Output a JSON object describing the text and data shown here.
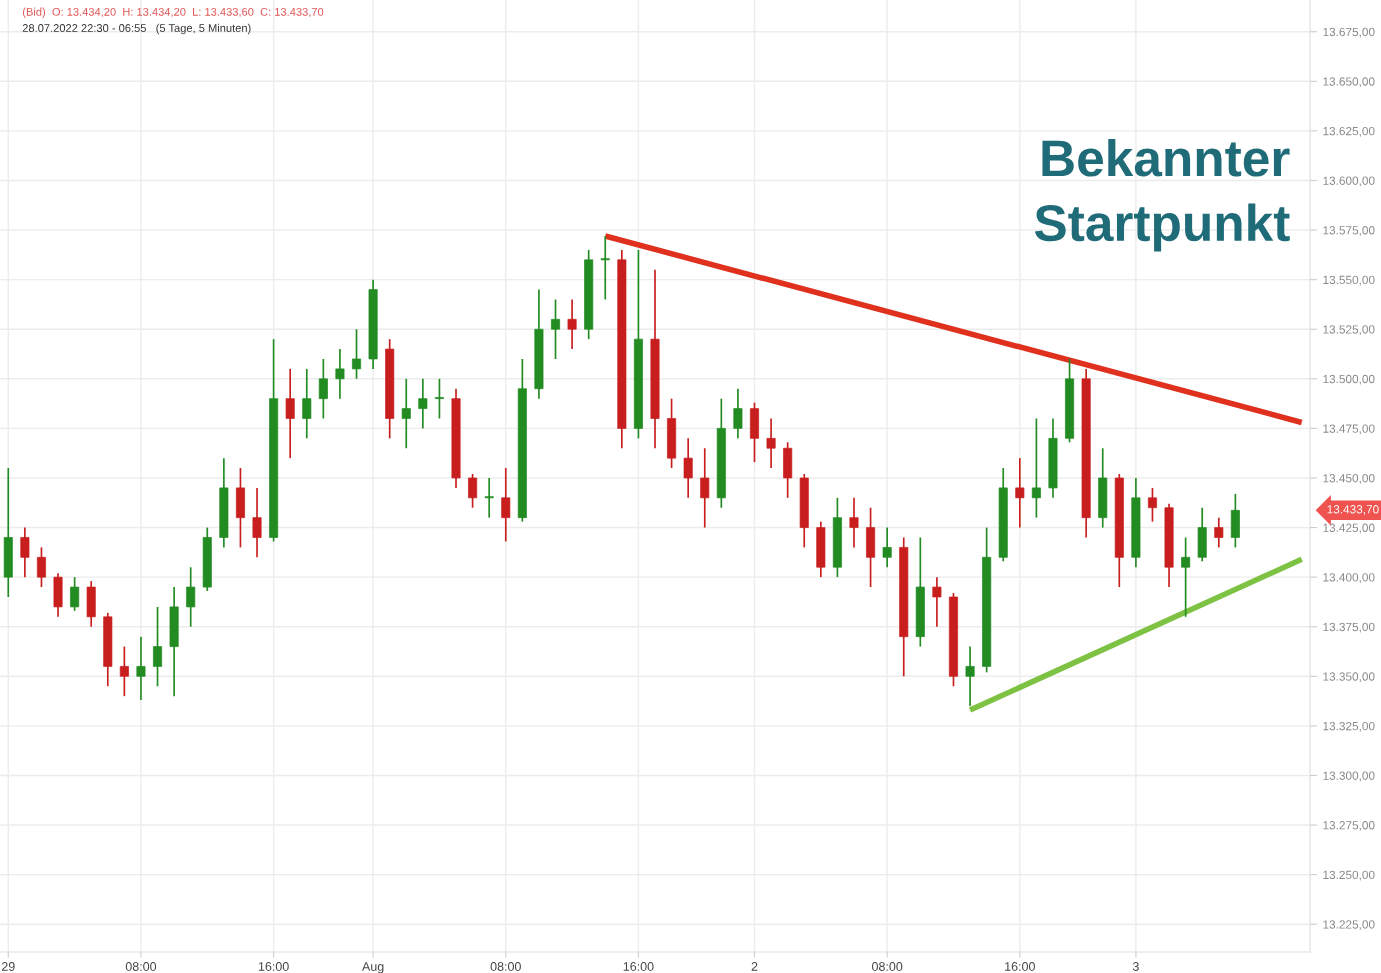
{
  "chart_data": {
    "type": "candlestick",
    "title": "(Bid)  O: 13.434,20  H: 13.434,20  L: 13.433,60  C: 13.433,70",
    "subtitle": "28.07.2022 22:30 - 06:55   (5 Tage, 5 Minuten)",
    "annotations": [
      "Bekannter\nStartpunkt",
      "13.433,70"
    ],
    "categories": [
      "29",
      null,
      null,
      null,
      null,
      null,
      null,
      null,
      "08:00",
      null,
      null,
      null,
      null,
      null,
      null,
      null,
      "16:00",
      null,
      null,
      null,
      null,
      null,
      "Aug",
      null,
      null,
      null,
      null,
      null,
      null,
      null,
      "08:00",
      null,
      null,
      null,
      null,
      null,
      null,
      null,
      "16:00",
      null,
      null,
      null,
      null,
      null,
      null,
      "2",
      null,
      null,
      null,
      null,
      null,
      null,
      null,
      "08:00",
      null,
      null,
      null,
      null,
      null,
      null,
      null,
      "16:00",
      null,
      null,
      null,
      null,
      null,
      null,
      "3",
      null,
      null,
      null,
      null,
      null,
      null,
      null,
      null,
      null,
      null
    ],
    "ohlc": [
      [
        13400,
        13455,
        13390,
        13420
      ],
      [
        13420,
        13425,
        13400,
        13410
      ],
      [
        13410,
        13415,
        13395,
        13400
      ],
      [
        13400,
        13402,
        13380,
        13385
      ],
      [
        13385,
        13400,
        13383,
        13395
      ],
      [
        13395,
        13398,
        13375,
        13380
      ],
      [
        13380,
        13382,
        13345,
        13355
      ],
      [
        13355,
        13365,
        13340,
        13350
      ],
      [
        13350,
        13370,
        13338,
        13355
      ],
      [
        13355,
        13385,
        13345,
        13365
      ],
      [
        13365,
        13395,
        13340,
        13385
      ],
      [
        13385,
        13405,
        13375,
        13395
      ],
      [
        13395,
        13425,
        13393,
        13420
      ],
      [
        13420,
        13460,
        13415,
        13445
      ],
      [
        13445,
        13455,
        13415,
        13430
      ],
      [
        13430,
        13445,
        13410,
        13420
      ],
      [
        13420,
        13520,
        13418,
        13490
      ],
      [
        13490,
        13505,
        13460,
        13480
      ],
      [
        13480,
        13505,
        13470,
        13490
      ],
      [
        13490,
        13510,
        13480,
        13500
      ],
      [
        13500,
        13515,
        13490,
        13505
      ],
      [
        13505,
        13525,
        13500,
        13510
      ],
      [
        13510,
        13550,
        13505,
        13545
      ],
      [
        13515,
        13520,
        13470,
        13480
      ],
      [
        13480,
        13500,
        13465,
        13485
      ],
      [
        13485,
        13500,
        13475,
        13490
      ],
      [
        13490,
        13500,
        13480,
        13490
      ],
      [
        13490,
        13495,
        13445,
        13450
      ],
      [
        13450,
        13452,
        13435,
        13440
      ],
      [
        13440,
        13450,
        13430,
        13440
      ],
      [
        13440,
        13455,
        13418,
        13430
      ],
      [
        13430,
        13510,
        13428,
        13495
      ],
      [
        13495,
        13545,
        13490,
        13525
      ],
      [
        13525,
        13540,
        13510,
        13530
      ],
      [
        13530,
        13540,
        13515,
        13525
      ],
      [
        13525,
        13565,
        13520,
        13560
      ],
      [
        13560,
        13572,
        13540,
        13560
      ],
      [
        13560,
        13565,
        13465,
        13475
      ],
      [
        13475,
        13565,
        13470,
        13520
      ],
      [
        13520,
        13555,
        13465,
        13480
      ],
      [
        13480,
        13490,
        13455,
        13460
      ],
      [
        13460,
        13470,
        13440,
        13450
      ],
      [
        13450,
        13465,
        13425,
        13440
      ],
      [
        13440,
        13490,
        13435,
        13475
      ],
      [
        13475,
        13495,
        13470,
        13485
      ],
      [
        13485,
        13488,
        13458,
        13470
      ],
      [
        13470,
        13480,
        13455,
        13465
      ],
      [
        13465,
        13468,
        13440,
        13450
      ],
      [
        13450,
        13452,
        13415,
        13425
      ],
      [
        13425,
        13428,
        13400,
        13405
      ],
      [
        13405,
        13440,
        13400,
        13430
      ],
      [
        13430,
        13440,
        13415,
        13425
      ],
      [
        13425,
        13435,
        13395,
        13410
      ],
      [
        13410,
        13425,
        13405,
        13415
      ],
      [
        13415,
        13420,
        13350,
        13370
      ],
      [
        13370,
        13420,
        13365,
        13395
      ],
      [
        13395,
        13400,
        13375,
        13390
      ],
      [
        13390,
        13392,
        13345,
        13350
      ],
      [
        13350,
        13365,
        13335,
        13355
      ],
      [
        13355,
        13425,
        13352,
        13410
      ],
      [
        13410,
        13455,
        13408,
        13445
      ],
      [
        13445,
        13460,
        13425,
        13440
      ],
      [
        13440,
        13480,
        13430,
        13445
      ],
      [
        13445,
        13480,
        13440,
        13470
      ],
      [
        13470,
        13510,
        13468,
        13500
      ],
      [
        13500,
        13505,
        13420,
        13430
      ],
      [
        13430,
        13465,
        13425,
        13450
      ],
      [
        13450,
        13452,
        13395,
        13410
      ],
      [
        13410,
        13450,
        13405,
        13440
      ],
      [
        13440,
        13445,
        13428,
        13435
      ],
      [
        13435,
        13437,
        13395,
        13405
      ],
      [
        13405,
        13420,
        13380,
        13410
      ],
      [
        13410,
        13435,
        13408,
        13425
      ],
      [
        13425,
        13430,
        13415,
        13420
      ],
      [
        13420,
        13442,
        13415,
        13433.7
      ],
      null,
      null,
      null,
      null
    ],
    "colors": [
      "#228b22",
      "#c81e1e",
      "#c81e1e",
      "#c81e1e",
      "#228b22",
      "#c81e1e",
      "#c81e1e",
      "#c81e1e",
      "#228b22",
      "#228b22",
      "#228b22",
      "#228b22",
      "#228b22",
      "#228b22",
      "#c81e1e",
      "#c81e1e",
      "#228b22",
      "#c81e1e",
      "#228b22",
      "#228b22",
      "#228b22",
      "#228b22",
      "#228b22",
      "#c81e1e",
      "#228b22",
      "#228b22",
      "#228b22",
      "#c81e1e",
      "#c81e1e",
      "#228b22",
      "#c81e1e",
      "#228b22",
      "#228b22",
      "#228b22",
      "#c81e1e",
      "#228b22",
      "#228b22",
      "#c81e1e",
      "#228b22",
      "#c81e1e",
      "#c81e1e",
      "#c81e1e",
      "#c81e1e",
      "#228b22",
      "#228b22",
      "#c81e1e",
      "#c81e1e",
      "#c81e1e",
      "#c81e1e",
      "#c81e1e",
      "#228b22",
      "#c81e1e",
      "#c81e1e",
      "#228b22",
      "#c81e1e",
      "#228b22",
      "#c81e1e",
      "#c81e1e",
      "#228b22",
      "#228b22",
      "#228b22",
      "#c81e1e",
      "#228b22",
      "#228b22",
      "#228b22",
      "#c81e1e",
      "#228b22",
      "#c81e1e",
      "#228b22",
      "#c81e1e",
      "#c81e1e",
      "#228b22",
      "#228b22",
      "#c81e1e",
      "#228b22",
      null,
      null,
      null,
      null
    ],
    "series": [
      {
        "type": "line",
        "values": [
          null,
          null,
          null,
          null,
          null,
          null,
          null,
          null,
          null,
          null,
          null,
          null,
          null,
          null,
          null,
          null,
          null,
          null,
          null,
          null,
          null,
          null,
          null,
          null,
          null,
          null,
          null,
          null,
          null,
          null,
          null,
          null,
          null,
          null,
          null,
          null,
          13572,
          null,
          null,
          null,
          null,
          null,
          null,
          null,
          null,
          null,
          null,
          null,
          null,
          null,
          null,
          null,
          null,
          null,
          null,
          null,
          null,
          null,
          null,
          null,
          null,
          null,
          null,
          null,
          null,
          null,
          null,
          null,
          null,
          null,
          null,
          null,
          null,
          null,
          null,
          null,
          null,
          null,
          13478
        ],
        "color": "#e0301e"
      },
      {
        "type": "line",
        "values": [
          null,
          null,
          null,
          null,
          null,
          null,
          null,
          null,
          null,
          null,
          null,
          null,
          null,
          null,
          null,
          null,
          null,
          null,
          null,
          null,
          null,
          null,
          null,
          null,
          null,
          null,
          null,
          null,
          null,
          null,
          null,
          null,
          null,
          null,
          null,
          null,
          null,
          null,
          null,
          null,
          null,
          null,
          null,
          null,
          null,
          null,
          null,
          null,
          null,
          null,
          null,
          null,
          null,
          null,
          null,
          null,
          null,
          null,
          13333,
          null,
          null,
          null,
          null,
          null,
          null,
          null,
          null,
          null,
          null,
          null,
          null,
          null,
          null,
          null,
          null,
          null,
          null,
          null,
          13409
        ],
        "color": "#7dc242"
      }
    ],
    "ylim": [
      13211,
      13691
    ],
    "yticks": [
      {
        "value": 13225,
        "label": "13.225,00"
      },
      {
        "value": 13250,
        "label": "13.250,00"
      },
      {
        "value": 13275,
        "label": "13.275,00"
      },
      {
        "value": 13300,
        "label": "13.300,00"
      },
      {
        "value": 13325,
        "label": "13.325,00"
      },
      {
        "value": 13350,
        "label": "13.350,00"
      },
      {
        "value": 13375,
        "label": "13.375,00"
      },
      {
        "value": 13400,
        "label": "13.400,00"
      },
      {
        "value": 13425,
        "label": "13.425,00"
      },
      {
        "value": 13450,
        "label": "13.450,00"
      },
      {
        "value": 13475,
        "label": "13.475,00"
      },
      {
        "value": 13500,
        "label": "13.500,00"
      },
      {
        "value": 13525,
        "label": "13.525,00"
      },
      {
        "value": 13550,
        "label": "13.550,00"
      },
      {
        "value": 13575,
        "label": "13.575,00"
      },
      {
        "value": 13600,
        "label": "13.600,00"
      },
      {
        "value": 13625,
        "label": "13.625,00"
      },
      {
        "value": 13650,
        "label": "13.650,00"
      },
      {
        "value": 13675,
        "label": "13.675,00"
      }
    ],
    "grid": true,
    "legend": false
  }
}
